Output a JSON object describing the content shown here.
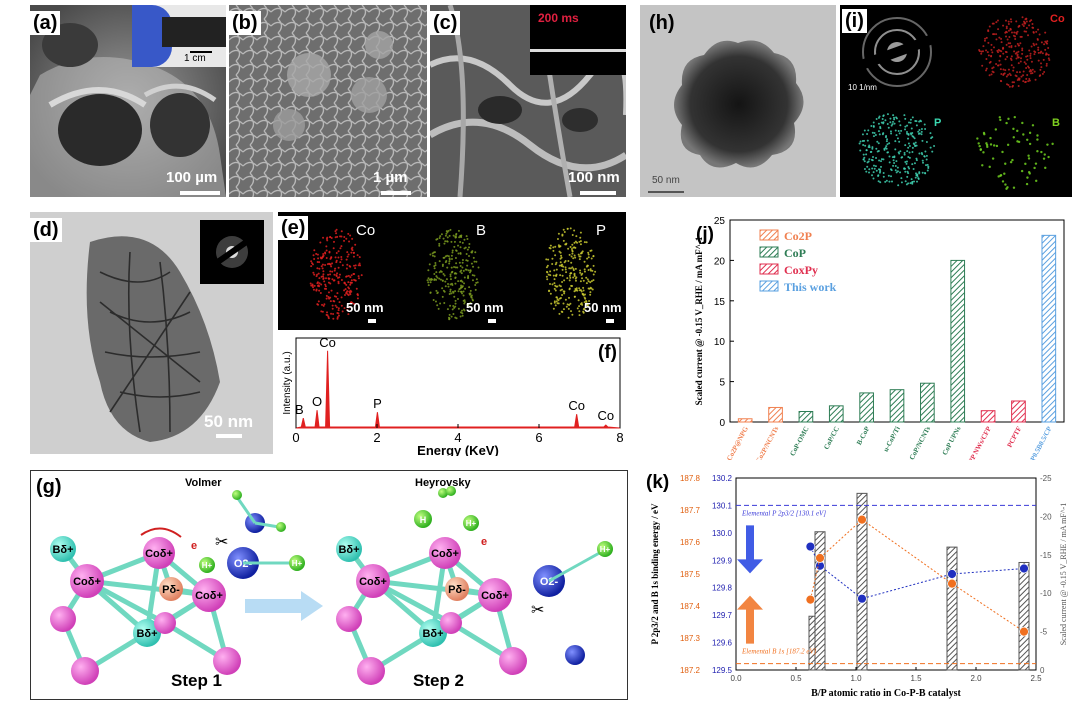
{
  "panels": {
    "a": {
      "label": "(a)",
      "scale": "100 µm",
      "inset_scale": "1 cm"
    },
    "b": {
      "label": "(b)",
      "scale": "1 µm"
    },
    "c": {
      "label": "(c)",
      "scale": "100 nm",
      "inset_time": "200 ms"
    },
    "d": {
      "label": "(d)",
      "scale": "50 nm"
    },
    "e": {
      "label": "(e)",
      "maps": [
        {
          "element": "Co",
          "scale": "50 nm",
          "color": "#e02020"
        },
        {
          "element": "B",
          "scale": "50 nm",
          "color": "#7a9a20"
        },
        {
          "element": "P",
          "scale": "50 nm",
          "color": "#c8c830"
        }
      ]
    },
    "h": {
      "label": "(h)",
      "scale": "50 nm"
    },
    "i": {
      "label": "(i)",
      "saed_scale": "10 1/nm",
      "maps": [
        "Co",
        "P",
        "B"
      ]
    },
    "g": {
      "label": "(g)",
      "step1": "Step 1",
      "step2": "Step 2",
      "volmer": "Volmer",
      "heyrovsky": "Heyrovsky",
      "atoms": {
        "co": "Coδ+",
        "b": "Bδ+",
        "p": "Pδ-",
        "o": "O2-",
        "h": "H",
        "hplus": "H+",
        "e": "e"
      }
    }
  },
  "chart_data": [
    {
      "id": "f",
      "type": "line",
      "label": "(f)",
      "xlabel": "Energy (KeV)",
      "ylabel": "Intensity (a.u.)",
      "xlim": [
        0,
        8
      ],
      "xticks": [
        0,
        2,
        4,
        6,
        8
      ],
      "peaks": [
        {
          "x": 0.18,
          "y": 0.1,
          "label": "B"
        },
        {
          "x": 0.52,
          "y": 0.18,
          "label": "O"
        },
        {
          "x": 0.78,
          "y": 0.78,
          "label": "Co"
        },
        {
          "x": 2.01,
          "y": 0.16,
          "label": "P"
        },
        {
          "x": 6.93,
          "y": 0.14,
          "label": "Co"
        },
        {
          "x": 7.65,
          "y": 0.03,
          "label": "Co"
        }
      ],
      "color": "#e02020"
    },
    {
      "id": "j",
      "type": "bar",
      "label": "(j)",
      "ylabel": "Scaled current @ -0.15 V_RHE / mA mF^-1",
      "ylim": [
        0,
        25
      ],
      "yticks": [
        0,
        5,
        10,
        15,
        20,
        25
      ],
      "legend": [
        {
          "name": "Co2P",
          "color": "#f08050"
        },
        {
          "name": "CoP",
          "color": "#2e7d55"
        },
        {
          "name": "CoxPy",
          "color": "#e03050"
        },
        {
          "name": "This work",
          "color": "#5aa0e0"
        }
      ],
      "categories": [
        "Co2P@NPG",
        "Co2P/NCNTs",
        "CoP-OMC",
        "CoP/CC",
        "B-CoP",
        "u-CoP/Ti",
        "CoP/NCNTs",
        "CoP UPNs",
        "Co2P NWs/CFP",
        "PCPTF",
        "Co2P0.5B0.5/CP"
      ],
      "groups": [
        "Co2P",
        "Co2P",
        "CoP",
        "CoP",
        "CoP",
        "CoP",
        "CoP",
        "CoP",
        "CoxPy",
        "CoxPy",
        "This work"
      ],
      "values": [
        0.4,
        1.8,
        1.3,
        2.0,
        3.6,
        4.0,
        4.8,
        20.0,
        1.4,
        2.6,
        23.1
      ]
    },
    {
      "id": "k",
      "type": "scatter",
      "label": "(k)",
      "xlabel": "B/P atomic ratio in Co-P-B catalyst",
      "ylabel_left": "P 2p3/2 and B 1s binding energy / eV",
      "ylabel_right": "Scaled current @ -0.15 V_RHE / mA mF^-1",
      "xlim": [
        0,
        2.5
      ],
      "xticks": [
        0.0,
        0.5,
        1.0,
        1.5,
        2.0,
        2.5
      ],
      "ylim_blue": [
        129.5,
        130.2
      ],
      "yticks_blue": [
        129.5,
        129.6,
        129.7,
        129.8,
        129.9,
        130.0,
        130.1,
        130.2
      ],
      "ylim_orange": [
        187.2,
        187.8
      ],
      "yticks_orange": [
        187.2,
        187.3,
        187.4,
        187.5,
        187.6,
        187.7,
        187.8
      ],
      "ylim_right": [
        0,
        -25
      ],
      "yticks_right": [
        0,
        -5,
        -10,
        -15,
        -20,
        -25
      ],
      "ref_lines": [
        {
          "name": "Elemental P 2p3/2 [130.1 eV]",
          "axis": "blue",
          "value": 130.1,
          "color": "#3a3ad8"
        },
        {
          "name": "Elemental B 1s [187.2 eV]",
          "axis": "orange",
          "value": 187.22,
          "color": "#f07020"
        }
      ],
      "bars": {
        "x": [
          0.65,
          0.7,
          1.05,
          1.8,
          2.4
        ],
        "values": [
          -7,
          -18,
          -23,
          -16,
          -14
        ]
      },
      "series": [
        {
          "name": "P 2p3/2",
          "axis": "blue",
          "color": "#2030c0",
          "x": [
            0.62,
            0.7,
            1.05,
            1.8,
            2.4
          ],
          "y": [
            129.95,
            129.88,
            129.76,
            129.85,
            129.87
          ]
        },
        {
          "name": "B 1s",
          "axis": "orange",
          "color": "#f07020",
          "x": [
            0.62,
            0.7,
            1.05,
            1.8,
            2.4
          ],
          "y": [
            187.42,
            187.55,
            187.67,
            187.47,
            187.32
          ]
        }
      ]
    }
  ]
}
